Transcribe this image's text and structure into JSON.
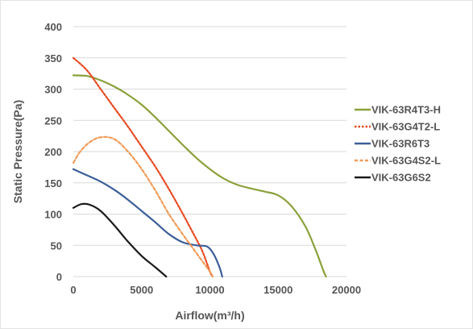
{
  "chart_data": {
    "type": "line",
    "title": "",
    "xlabel": "Airflow(m³/h)",
    "ylabel": "Static Pressure(Pa)",
    "xlim": [
      0,
      20000
    ],
    "ylim": [
      0,
      400
    ],
    "xticks": [
      0,
      5000,
      10000,
      15000,
      20000
    ],
    "yticks": [
      0,
      50,
      100,
      150,
      200,
      250,
      300,
      350,
      400
    ],
    "grid": "horizontal",
    "legend_position": "right",
    "series": [
      {
        "name": "VIK-63R4T3-H",
        "color": "#8aa13a",
        "dash": "solid",
        "points": [
          [
            0,
            322
          ],
          [
            1000,
            321
          ],
          [
            2000,
            314
          ],
          [
            3000,
            304
          ],
          [
            4000,
            291
          ],
          [
            5000,
            275
          ],
          [
            6000,
            255
          ],
          [
            7000,
            233
          ],
          [
            8000,
            211
          ],
          [
            9000,
            190
          ],
          [
            10000,
            172
          ],
          [
            11000,
            157
          ],
          [
            12000,
            147
          ],
          [
            13000,
            141
          ],
          [
            14000,
            136
          ],
          [
            15000,
            130
          ],
          [
            16000,
            112
          ],
          [
            17000,
            80
          ],
          [
            17700,
            45
          ],
          [
            18300,
            10
          ],
          [
            18500,
            0
          ]
        ]
      },
      {
        "name": "VIK-63G4T2-L",
        "color": "#e84a22",
        "dash": "dotted",
        "points": [
          [
            0,
            350
          ],
          [
            1000,
            330
          ],
          [
            2000,
            300
          ],
          [
            3000,
            270
          ],
          [
            4000,
            240
          ],
          [
            5000,
            208
          ],
          [
            6000,
            176
          ],
          [
            7000,
            140
          ],
          [
            8000,
            101
          ],
          [
            9000,
            60
          ],
          [
            9500,
            38
          ],
          [
            10000,
            8
          ],
          [
            10200,
            0
          ]
        ]
      },
      {
        "name": "VIK-63R6T3",
        "color": "#3c5f98",
        "dash": "solid",
        "points": [
          [
            0,
            172
          ],
          [
            1000,
            162
          ],
          [
            2000,
            152
          ],
          [
            3000,
            139
          ],
          [
            4000,
            123
          ],
          [
            5000,
            105
          ],
          [
            6000,
            87
          ],
          [
            7000,
            68
          ],
          [
            8000,
            55
          ],
          [
            9000,
            50
          ],
          [
            9800,
            48
          ],
          [
            10300,
            35
          ],
          [
            10700,
            15
          ],
          [
            10900,
            0
          ]
        ]
      },
      {
        "name": "VIK-63G4S2-L",
        "color": "#ef9b58",
        "dash": "dashed",
        "points": [
          [
            0,
            182
          ],
          [
            500,
            200
          ],
          [
            1200,
            215
          ],
          [
            2000,
            223
          ],
          [
            3000,
            220
          ],
          [
            4000,
            200
          ],
          [
            5000,
            172
          ],
          [
            6000,
            138
          ],
          [
            7000,
            100
          ],
          [
            8000,
            68
          ],
          [
            8600,
            50
          ],
          [
            9200,
            32
          ],
          [
            10000,
            8
          ],
          [
            10200,
            0
          ]
        ]
      },
      {
        "name": "VIK-63G6S2",
        "color": "#1a1a1a",
        "dash": "solid",
        "points": [
          [
            0,
            110
          ],
          [
            600,
            116
          ],
          [
            1200,
            115
          ],
          [
            2000,
            105
          ],
          [
            3000,
            82
          ],
          [
            4000,
            56
          ],
          [
            5000,
            33
          ],
          [
            6000,
            15
          ],
          [
            6800,
            0
          ]
        ]
      }
    ]
  }
}
